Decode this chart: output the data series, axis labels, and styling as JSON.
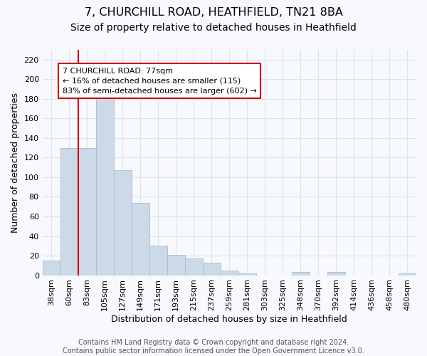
{
  "title1": "7, CHURCHILL ROAD, HEATHFIELD, TN21 8BA",
  "title2": "Size of property relative to detached houses in Heathfield",
  "xlabel": "Distribution of detached houses by size in Heathfield",
  "ylabel": "Number of detached properties",
  "categories": [
    "38sqm",
    "60sqm",
    "83sqm",
    "105sqm",
    "127sqm",
    "149sqm",
    "171sqm",
    "193sqm",
    "215sqm",
    "237sqm",
    "259sqm",
    "281sqm",
    "303sqm",
    "325sqm",
    "348sqm",
    "370sqm",
    "392sqm",
    "414sqm",
    "436sqm",
    "458sqm",
    "480sqm"
  ],
  "values": [
    15,
    130,
    130,
    181,
    107,
    74,
    30,
    21,
    17,
    13,
    5,
    2,
    0,
    0,
    3,
    0,
    3,
    0,
    0,
    0,
    2
  ],
  "bar_color": "#ccd9e8",
  "bar_edge_color": "#aabccc",
  "vline_x": 1.5,
  "vline_color": "#cc0000",
  "annotation_text": "7 CHURCHILL ROAD: 77sqm\n← 16% of detached houses are smaller (115)\n83% of semi-detached houses are larger (602) →",
  "annotation_box_facecolor": "#ffffff",
  "annotation_box_edgecolor": "#cc0000",
  "ylim": [
    0,
    230
  ],
  "yticks": [
    0,
    20,
    40,
    60,
    80,
    100,
    120,
    140,
    160,
    180,
    200,
    220
  ],
  "footnote": "Contains HM Land Registry data © Crown copyright and database right 2024.\nContains public sector information licensed under the Open Government Licence v3.0.",
  "plot_bg_color": "#f7f9fc",
  "fig_bg_color": "#f7f9fc",
  "grid_color": "#d8e4f0",
  "title1_fontsize": 11.5,
  "title2_fontsize": 10,
  "axis_label_fontsize": 9,
  "tick_fontsize": 8,
  "annotation_fontsize": 8,
  "footnote_fontsize": 7
}
